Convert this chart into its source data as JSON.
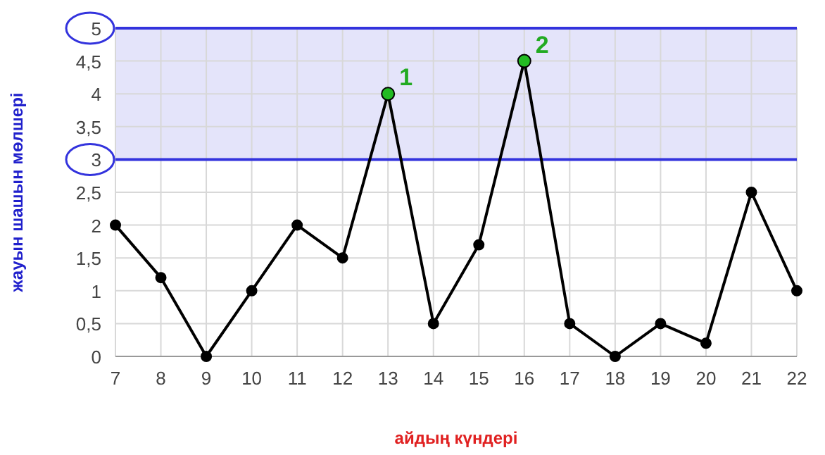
{
  "chart_data": {
    "type": "line",
    "xlabel": "айдың күндері",
    "ylabel": "жауын шашын мөлшері",
    "x": [
      7,
      8,
      9,
      10,
      11,
      12,
      13,
      14,
      15,
      16,
      17,
      18,
      19,
      20,
      21,
      22
    ],
    "series": [
      {
        "color": "#000000",
        "values": [
          2,
          1.2,
          0,
          1,
          2,
          1.5,
          4,
          0.5,
          1.7,
          4.5,
          0.5,
          0,
          0.5,
          0.2,
          2.5,
          1
        ]
      },
      {
        "type": "scatter",
        "color": "#22bb22",
        "x": [
          13,
          16
        ],
        "values": [
          4,
          4.5
        ]
      }
    ],
    "xlim": [
      7,
      22
    ],
    "xticks": [
      7,
      8,
      9,
      10,
      11,
      12,
      13,
      14,
      15,
      16,
      17,
      18,
      19,
      20,
      21,
      22
    ],
    "ylim": [
      0,
      5
    ],
    "yticks": [
      0,
      {
        "value": 0.5,
        "label": "0,5"
      },
      1,
      {
        "value": 1.5,
        "label": "1,5"
      },
      2,
      {
        "value": 2.5,
        "label": "2,5"
      },
      3,
      {
        "value": 3.5,
        "label": "3,5"
      },
      4,
      {
        "value": 4.5,
        "label": "4,5"
      },
      5
    ],
    "bands": [
      {
        "axis": "y",
        "from": 3,
        "to": 5,
        "color": "#e4e4fa"
      }
    ],
    "ref_lines": [
      {
        "axis": "y",
        "value": 3,
        "color": "#3333dd"
      },
      {
        "axis": "y",
        "value": 5,
        "color": "#3333dd"
      }
    ],
    "annotations": [
      {
        "text": "1",
        "x": 13,
        "y": 4
      },
      {
        "text": "2",
        "x": 16,
        "y": 4.5
      }
    ],
    "grid": true,
    "marker": "circle",
    "line_style": "solid"
  }
}
